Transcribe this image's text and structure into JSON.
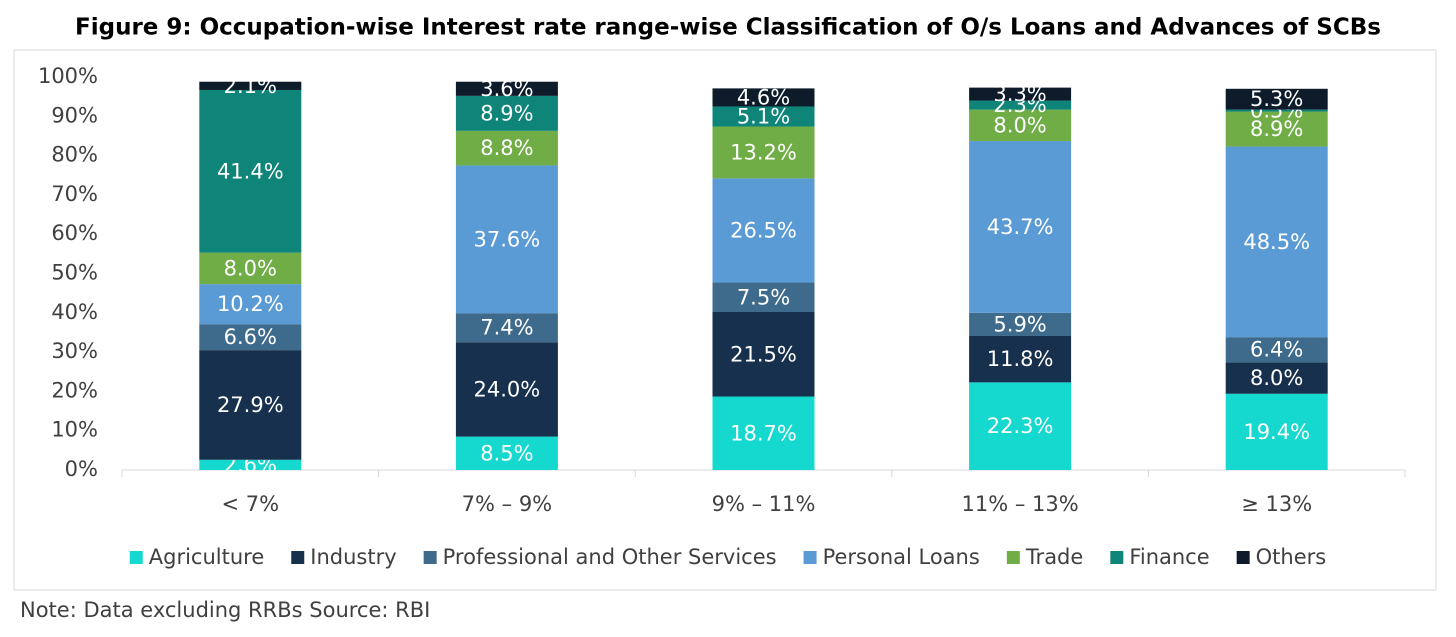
{
  "chart_data": {
    "type": "stacked_bar",
    "title": "Figure 9: Occupation-wise Interest rate range-wise Classification of O/s Loans and Advances of SCBs",
    "note": "Note: Data excluding RRBs Source: RBI",
    "categories": [
      "< 7%",
      "7% – 9%",
      "9% – 11%",
      "11% – 13%",
      "≥ 13%"
    ],
    "series": [
      {
        "name": "Agriculture",
        "color": "#15d8ce",
        "values": [
          2.6,
          8.5,
          18.7,
          22.3,
          19.4
        ],
        "value_labels": [
          "2.6%",
          "8.5%",
          "18.7%",
          "22.3%",
          "19.4%"
        ]
      },
      {
        "name": "Industry",
        "color": "#17304d",
        "values": [
          27.9,
          24.0,
          21.5,
          11.8,
          8.0
        ],
        "value_labels": [
          "27.9%",
          "24.0%",
          "21.5%",
          "11.8%",
          "8.0%"
        ]
      },
      {
        "name": "Professional and Other Services",
        "color": "#3e6a8c",
        "values": [
          6.6,
          7.4,
          7.5,
          5.9,
          6.4
        ],
        "value_labels": [
          "6.6%",
          "7.4%",
          "7.5%",
          "5.9%",
          "6.4%"
        ]
      },
      {
        "name": "Personal Loans",
        "color": "#5b9bd5",
        "values": [
          10.2,
          37.6,
          26.5,
          43.7,
          48.5
        ],
        "value_labels": [
          "10.2%",
          "37.6%",
          "26.5%",
          "43.7%",
          "48.5%"
        ]
      },
      {
        "name": "Trade",
        "color": "#70ad47",
        "values": [
          8.0,
          8.8,
          13.2,
          8.0,
          8.9
        ],
        "value_labels": [
          "8.0%",
          "8.8%",
          "13.2%",
          "8.0%",
          "8.9%"
        ]
      },
      {
        "name": "Finance",
        "color": "#0e8578",
        "values": [
          41.4,
          8.9,
          5.1,
          2.3,
          0.5
        ],
        "value_labels": [
          "41.4%",
          "8.9%",
          "5.1%",
          "2.3%",
          "0.5%"
        ]
      },
      {
        "name": "Others",
        "color": "#0d1b2a",
        "values": [
          2.1,
          3.6,
          4.6,
          3.3,
          5.3
        ],
        "value_labels": [
          "2.1%",
          "3.6%",
          "4.6%",
          "3.3%",
          "5.3%"
        ]
      }
    ],
    "ylim": [
      0,
      100
    ],
    "yticks": [
      {
        "value": 0,
        "label": "0%"
      },
      {
        "value": 10,
        "label": "10%"
      },
      {
        "value": 20,
        "label": "20%"
      },
      {
        "value": 30,
        "label": "30%"
      },
      {
        "value": 40,
        "label": "40%"
      },
      {
        "value": 50,
        "label": "50%"
      },
      {
        "value": 60,
        "label": "60%"
      },
      {
        "value": 70,
        "label": "70%"
      },
      {
        "value": 80,
        "label": "80%"
      },
      {
        "value": 90,
        "label": "90%"
      },
      {
        "value": 100,
        "label": "100%"
      }
    ],
    "grid": false
  }
}
